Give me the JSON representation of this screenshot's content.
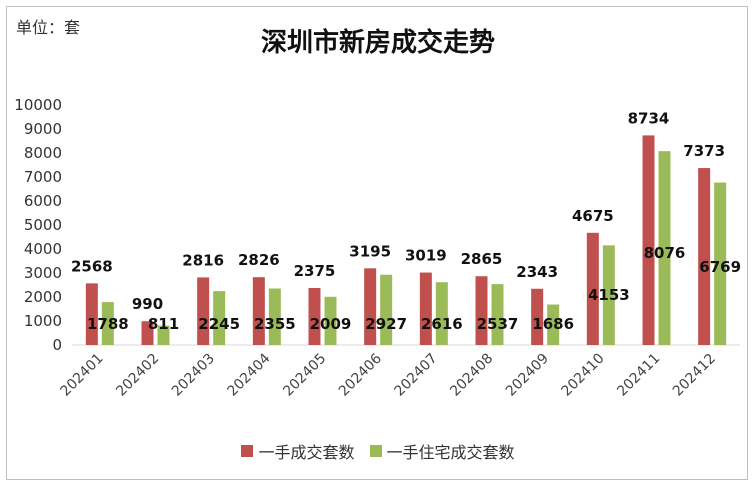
{
  "chart_data": {
    "type": "bar",
    "title": "深圳市新房成交走势",
    "unit_label": "单位：套",
    "categories": [
      "202401",
      "202402",
      "202403",
      "202404",
      "202405",
      "202406",
      "202407",
      "202408",
      "202409",
      "202410",
      "202411",
      "202412"
    ],
    "series": [
      {
        "name": "一手成交套数",
        "color": "#c0504d",
        "values": [
          2568,
          990,
          2816,
          2826,
          2375,
          3195,
          3019,
          2865,
          2343,
          4675,
          8734,
          7373
        ]
      },
      {
        "name": "一手住宅成交套数",
        "color": "#9bbb59",
        "values": [
          1788,
          811,
          2245,
          2355,
          2009,
          2927,
          2616,
          2537,
          1686,
          4153,
          8076,
          6769
        ]
      }
    ],
    "ylim": [
      0,
      10000
    ],
    "yticks": [
      0,
      1000,
      2000,
      3000,
      4000,
      5000,
      6000,
      7000,
      8000,
      9000,
      10000
    ],
    "grid": false,
    "legend_position": "bottom"
  }
}
